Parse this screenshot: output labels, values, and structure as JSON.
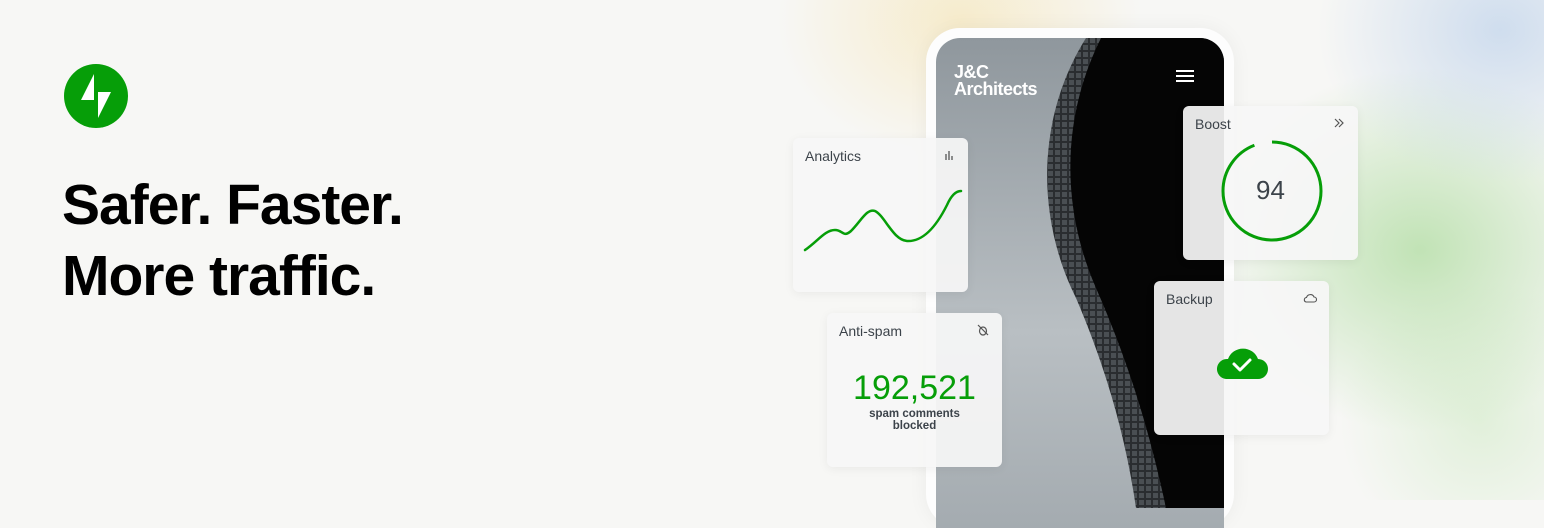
{
  "headline": {
    "line1": "Safer. Faster.",
    "line2": "More traffic."
  },
  "colors": {
    "accent": "#069e08",
    "text": "#000000",
    "card_text": "#3c434a"
  },
  "phone": {
    "brand_line1": "J&C",
    "brand_line2": "Architects",
    "menu_icon": "hamburger-icon"
  },
  "cards": {
    "analytics": {
      "title": "Analytics",
      "icon": "bar-chart-icon"
    },
    "antispam": {
      "title": "Anti-spam",
      "icon": "bug-off-icon",
      "count": "192,521",
      "caption_line1": "spam comments",
      "caption_line2": "blocked"
    },
    "boost": {
      "title": "Boost",
      "icon": "double-chevron-right-icon",
      "score": "94",
      "score_max": 100
    },
    "backup": {
      "title": "Backup",
      "icon": "cloud-icon",
      "status_icon": "cloud-check-icon"
    }
  }
}
